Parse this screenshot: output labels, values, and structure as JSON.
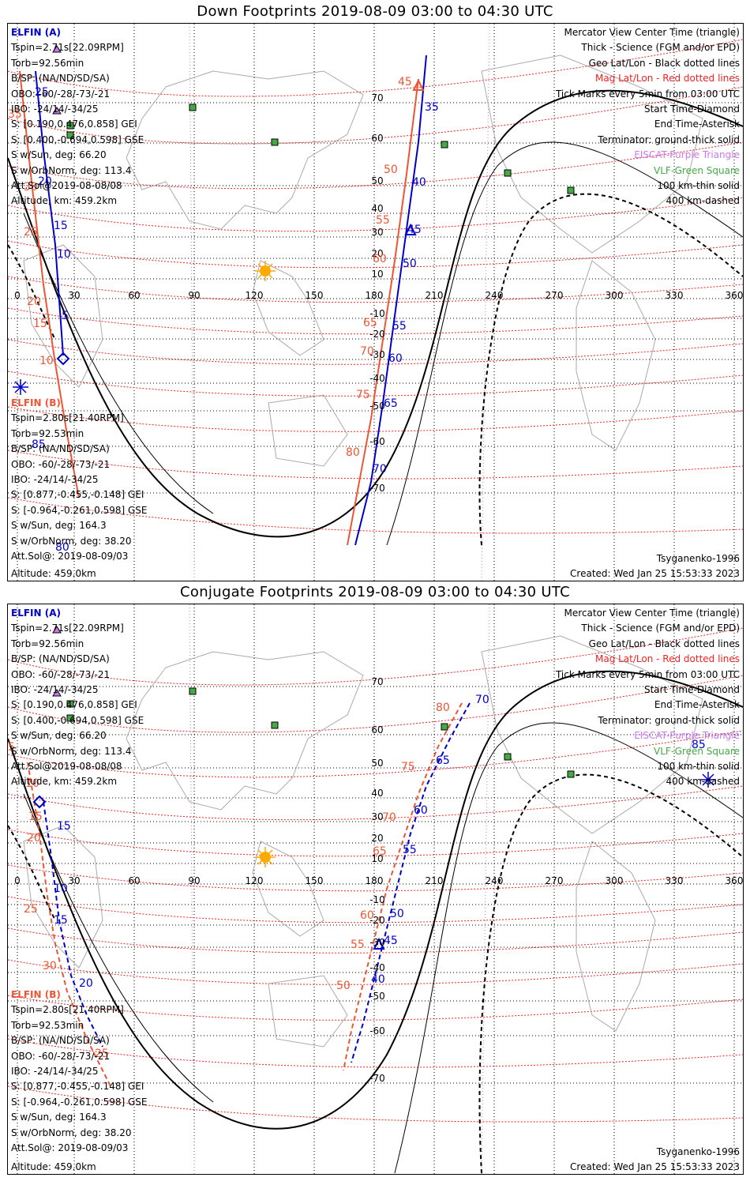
{
  "panels": [
    {
      "title": "Down Footprints 2019-08-09 03:00 to 04:30 UTC",
      "info_a": {
        "header": "ELFIN (A)",
        "lines": [
          "Tspin=2.71s[22.09RPM]",
          "Torb=92.56min",
          "B/SP: (NA/ND/SD/SA)",
          "OBO: -60/-28/-73/-21",
          "IBO: -24/14/-34/25",
          "S: [0.190,0.476,0.858] GEI",
          "S: [0.400,-0.694,0.598] GSE",
          "S w/Sun, deg: 66.20",
          "S w/OrbNorm, deg: 113.4",
          "Att.Sol@2019-08-08/08",
          "Altitude, km: 459.2km"
        ]
      },
      "info_b": {
        "header": "ELFIN (B)",
        "lines": [
          "Tspin=2.80s[21.40RPM]",
          "Torb=92.53min",
          "B/SP: (NA/ND/SD/SA)",
          "OBO: -60/-28/-73/-21",
          "IBO: -24/14/-34/25",
          "S: [0.877,-0.455,-0.148] GEI",
          "S: [-0.964,-0.261,0.598] GSE",
          "S w/Sun, deg: 164.3",
          "S w/OrbNorm, deg: 38.20",
          "Att.Sol@: 2019-08-09/03",
          "Altitude: 459.0km"
        ]
      },
      "model": "Tsyganenko-1996",
      "created": "Created: Wed Jan 25 15:53:33 2023"
    },
    {
      "title": "Conjugate Footprints 2019-08-09 03:00 to 04:30 UTC",
      "info_a": {
        "header": "ELFIN (A)",
        "lines": [
          "Tspin=2.71s[22.09RPM]",
          "Torb=92.56min",
          "B/SP: (NA/ND/SD/SA)",
          "OBO: -60/-28/-73/-21",
          "IBO: -24/14/-34/25",
          "S: [0.190,0.476,0.858] GEI",
          "S: [0.400,-0.694,0.598] GSE",
          "S w/Sun, deg: 66.20",
          "S w/OrbNorm, deg: 113.4",
          "Att.Sol@2019-08-08/08",
          "Altitude, km: 459.2km"
        ]
      },
      "info_b": {
        "header": "ELFIN (B)",
        "lines": [
          "Tspin=2.80s[21.40RPM]",
          "Torb=92.53min",
          "B/SP: (NA/ND/SD/SA)",
          "OBO: -60/-28/-73/-21",
          "IBO: -24/14/-34/25",
          "S: [0.877,-0.455,-0.148] GEI",
          "S: [-0.964,-0.261,0.598] GSE",
          "S w/Sun, deg: 164.3",
          "S w/OrbNorm, deg: 38.20",
          "Att.Sol@: 2019-08-09/03",
          "Altitude: 459.0km"
        ]
      },
      "model": "Tsyganenko-1996",
      "created": "Created: Wed Jan 25 15:53:33 2023"
    }
  ],
  "legend": [
    {
      "text": "Mercator View Center Time (triangle)",
      "color": "#000000"
    },
    {
      "text": "Thick - Science (FGM and/or EPD)",
      "color": "#000000"
    },
    {
      "text": "Geo Lat/Lon - Black dotted lines",
      "color": "#000000"
    },
    {
      "text": "Mag Lat/Lon - Red dotted lines",
      "color": "#ee2222"
    },
    {
      "text": "Tick Marks every 5min from 03:00 UTC",
      "color": "#000000"
    },
    {
      "text": "Start Time-Diamond",
      "color": "#000000"
    },
    {
      "text": "End Time-Asterisk",
      "color": "#000000"
    },
    {
      "text": "Terminator: ground-thick solid",
      "color": "#000000"
    },
    {
      "text": "EISCAT-Purple Triangle",
      "color": "#cc77ee"
    },
    {
      "text": "VLF-Green Square",
      "color": "#44aa44"
    },
    {
      "text": "100 km-thin solid",
      "color": "#000000"
    },
    {
      "text": "400 km-dashed",
      "color": "#000000"
    }
  ],
  "lon_ticks": [
    "0",
    "30",
    "60",
    "90",
    "120",
    "150",
    "180",
    "210",
    "240",
    "270",
    "300",
    "330",
    "360"
  ],
  "lat_ticks_n": [
    "70",
    "60",
    "50",
    "40",
    "30",
    "20",
    "10"
  ],
  "lat_ticks_s": [
    "-10",
    "-20",
    "-30",
    "-40",
    "-50",
    "-60",
    "-70"
  ],
  "colors": {
    "elfin_a": "#0000cc",
    "elfin_b": "#ee5533",
    "mag_grid": "#ee2222",
    "eiscat": "#cc77ee",
    "vlf": "#44aa44",
    "sun": "#ffaa00"
  },
  "down_labels_a": [
    "25",
    "20",
    "15",
    "10",
    "5",
    "35",
    "40",
    "45",
    "50",
    "55",
    "60",
    "65",
    "70",
    "80"
  ],
  "down_labels_b": [
    "35",
    "30",
    "25",
    "20",
    "15",
    "10",
    "45",
    "50",
    "55",
    "60",
    "65",
    "70",
    "75",
    "80",
    "85"
  ],
  "conj_labels_a": [
    "15",
    "10",
    "15",
    "20",
    "70",
    "65",
    "60",
    "55",
    "50",
    "45",
    "40",
    "85"
  ],
  "conj_labels_b": [
    "5",
    "10",
    "15",
    "20",
    "25",
    "30",
    "80",
    "75",
    "70",
    "65",
    "60",
    "55",
    "50",
    "25"
  ]
}
